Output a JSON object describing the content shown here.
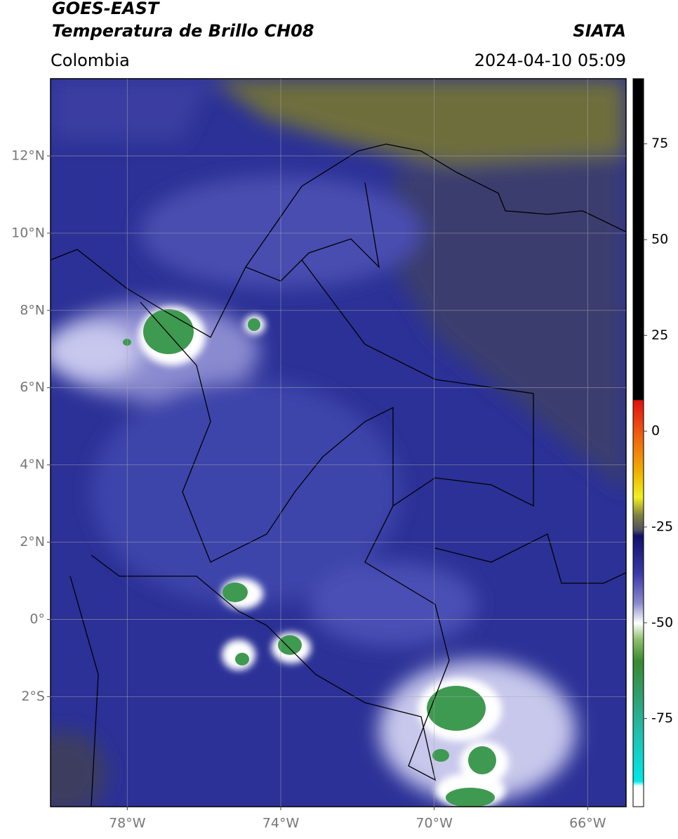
{
  "header": {
    "title": "GOES-EAST",
    "subtitle": "Temperatura de Brillo CH08",
    "source": "SIATA",
    "region": "Colombia",
    "datetime": "2024-04-10 05:09"
  },
  "map": {
    "xlim": [
      -80,
      -65
    ],
    "ylim": [
      -4.85,
      14
    ],
    "xticks": [
      {
        "value": -78,
        "label": "78°W"
      },
      {
        "value": -74,
        "label": "74°W"
      },
      {
        "value": -70,
        "label": "70°W"
      },
      {
        "value": -66,
        "label": "66°W"
      }
    ],
    "yticks": [
      {
        "value": 12,
        "label": "12°N"
      },
      {
        "value": 10,
        "label": "10°N"
      },
      {
        "value": 8,
        "label": "8°N"
      },
      {
        "value": 6,
        "label": "6°N"
      },
      {
        "value": 4,
        "label": "4°N"
      },
      {
        "value": 2,
        "label": "2°N"
      },
      {
        "value": 0,
        "label": "0°"
      },
      {
        "value": -2,
        "label": "2°S"
      }
    ],
    "grid": true
  },
  "colorbar": {
    "lim": [
      -98,
      92
    ],
    "ticks": [
      75,
      50,
      25,
      0,
      -25,
      -50,
      -75
    ]
  }
}
